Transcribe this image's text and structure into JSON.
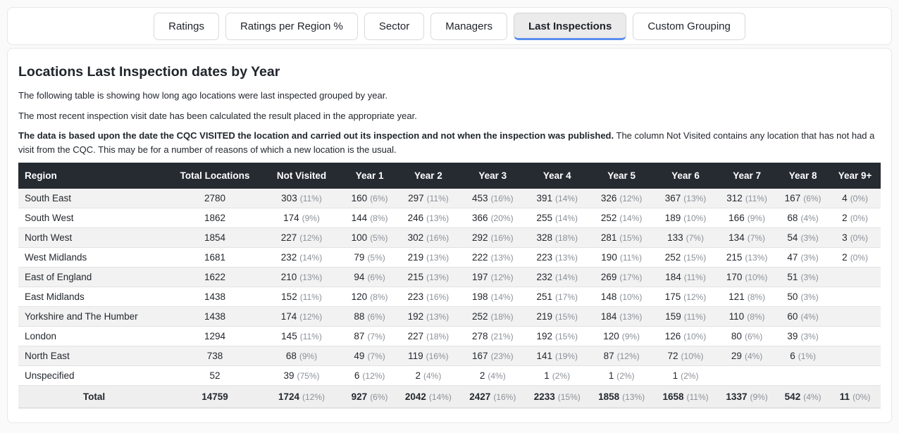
{
  "colors": {
    "accent": "#5b8def",
    "header_bg": "#262b32",
    "stripe": "#f2f2f2",
    "total_bg": "#efefef",
    "pct_gray": "#8b9097"
  },
  "tabs": [
    {
      "label": "Ratings",
      "active": false
    },
    {
      "label": "Ratings per Region %",
      "active": false
    },
    {
      "label": "Sector",
      "active": false
    },
    {
      "label": "Managers",
      "active": false
    },
    {
      "label": "Last Inspections",
      "active": true
    },
    {
      "label": "Custom Grouping",
      "active": false
    }
  ],
  "content": {
    "title": "Locations Last Inspection dates by Year",
    "para1": "The following table is showing how long ago locations were last inspected grouped by year.",
    "para2": "The most recent inspection visit date has been calculated the result placed in the appropriate year.",
    "note_bold": "The data is based upon the date the CQC VISITED the location and carried out its inspection and not when the inspection was published.",
    "note_rest": "The column Not Visited contains any location that has not had a visit from the CQC. This may be for a number of reasons of which a new location is the usual."
  },
  "table": {
    "headers": [
      "Region",
      "Total Locations",
      "Not Visited",
      "Year 1",
      "Year 2",
      "Year 3",
      "Year 4",
      "Year 5",
      "Year 6",
      "Year 7",
      "Year 8",
      "Year 9+"
    ],
    "rows": [
      {
        "region": "South East",
        "total": "2780",
        "cells": [
          {
            "n": "303",
            "p": "(11%)"
          },
          {
            "n": "160",
            "p": "(6%)"
          },
          {
            "n": "297",
            "p": "(11%)"
          },
          {
            "n": "453",
            "p": "(16%)"
          },
          {
            "n": "391",
            "p": "(14%)"
          },
          {
            "n": "326",
            "p": "(12%)"
          },
          {
            "n": "367",
            "p": "(13%)"
          },
          {
            "n": "312",
            "p": "(11%)"
          },
          {
            "n": "167",
            "p": "(6%)"
          },
          {
            "n": "4",
            "p": "(0%)"
          }
        ]
      },
      {
        "region": "South West",
        "total": "1862",
        "cells": [
          {
            "n": "174",
            "p": "(9%)"
          },
          {
            "n": "144",
            "p": "(8%)"
          },
          {
            "n": "246",
            "p": "(13%)"
          },
          {
            "n": "366",
            "p": "(20%)"
          },
          {
            "n": "255",
            "p": "(14%)"
          },
          {
            "n": "252",
            "p": "(14%)"
          },
          {
            "n": "189",
            "p": "(10%)"
          },
          {
            "n": "166",
            "p": "(9%)"
          },
          {
            "n": "68",
            "p": "(4%)"
          },
          {
            "n": "2",
            "p": "(0%)"
          }
        ]
      },
      {
        "region": "North West",
        "total": "1854",
        "cells": [
          {
            "n": "227",
            "p": "(12%)"
          },
          {
            "n": "100",
            "p": "(5%)"
          },
          {
            "n": "302",
            "p": "(16%)"
          },
          {
            "n": "292",
            "p": "(16%)"
          },
          {
            "n": "328",
            "p": "(18%)"
          },
          {
            "n": "281",
            "p": "(15%)"
          },
          {
            "n": "133",
            "p": "(7%)"
          },
          {
            "n": "134",
            "p": "(7%)"
          },
          {
            "n": "54",
            "p": "(3%)"
          },
          {
            "n": "3",
            "p": "(0%)"
          }
        ]
      },
      {
        "region": "West Midlands",
        "total": "1681",
        "cells": [
          {
            "n": "232",
            "p": "(14%)"
          },
          {
            "n": "79",
            "p": "(5%)"
          },
          {
            "n": "219",
            "p": "(13%)"
          },
          {
            "n": "222",
            "p": "(13%)"
          },
          {
            "n": "223",
            "p": "(13%)"
          },
          {
            "n": "190",
            "p": "(11%)"
          },
          {
            "n": "252",
            "p": "(15%)"
          },
          {
            "n": "215",
            "p": "(13%)"
          },
          {
            "n": "47",
            "p": "(3%)"
          },
          {
            "n": "2",
            "p": "(0%)"
          }
        ]
      },
      {
        "region": "East of England",
        "total": "1622",
        "cells": [
          {
            "n": "210",
            "p": "(13%)"
          },
          {
            "n": "94",
            "p": "(6%)"
          },
          {
            "n": "215",
            "p": "(13%)"
          },
          {
            "n": "197",
            "p": "(12%)"
          },
          {
            "n": "232",
            "p": "(14%)"
          },
          {
            "n": "269",
            "p": "(17%)"
          },
          {
            "n": "184",
            "p": "(11%)"
          },
          {
            "n": "170",
            "p": "(10%)"
          },
          {
            "n": "51",
            "p": "(3%)"
          },
          null
        ]
      },
      {
        "region": "East Midlands",
        "total": "1438",
        "cells": [
          {
            "n": "152",
            "p": "(11%)"
          },
          {
            "n": "120",
            "p": "(8%)"
          },
          {
            "n": "223",
            "p": "(16%)"
          },
          {
            "n": "198",
            "p": "(14%)"
          },
          {
            "n": "251",
            "p": "(17%)"
          },
          {
            "n": "148",
            "p": "(10%)"
          },
          {
            "n": "175",
            "p": "(12%)"
          },
          {
            "n": "121",
            "p": "(8%)"
          },
          {
            "n": "50",
            "p": "(3%)"
          },
          null
        ]
      },
      {
        "region": "Yorkshire and The Humber",
        "total": "1438",
        "cells": [
          {
            "n": "174",
            "p": "(12%)"
          },
          {
            "n": "88",
            "p": "(6%)"
          },
          {
            "n": "192",
            "p": "(13%)"
          },
          {
            "n": "252",
            "p": "(18%)"
          },
          {
            "n": "219",
            "p": "(15%)"
          },
          {
            "n": "184",
            "p": "(13%)"
          },
          {
            "n": "159",
            "p": "(11%)"
          },
          {
            "n": "110",
            "p": "(8%)"
          },
          {
            "n": "60",
            "p": "(4%)"
          },
          null
        ]
      },
      {
        "region": "London",
        "total": "1294",
        "cells": [
          {
            "n": "145",
            "p": "(11%)"
          },
          {
            "n": "87",
            "p": "(7%)"
          },
          {
            "n": "227",
            "p": "(18%)"
          },
          {
            "n": "278",
            "p": "(21%)"
          },
          {
            "n": "192",
            "p": "(15%)"
          },
          {
            "n": "120",
            "p": "(9%)"
          },
          {
            "n": "126",
            "p": "(10%)"
          },
          {
            "n": "80",
            "p": "(6%)"
          },
          {
            "n": "39",
            "p": "(3%)"
          },
          null
        ]
      },
      {
        "region": "North East",
        "total": "738",
        "cells": [
          {
            "n": "68",
            "p": "(9%)"
          },
          {
            "n": "49",
            "p": "(7%)"
          },
          {
            "n": "119",
            "p": "(16%)"
          },
          {
            "n": "167",
            "p": "(23%)"
          },
          {
            "n": "141",
            "p": "(19%)"
          },
          {
            "n": "87",
            "p": "(12%)"
          },
          {
            "n": "72",
            "p": "(10%)"
          },
          {
            "n": "29",
            "p": "(4%)"
          },
          {
            "n": "6",
            "p": "(1%)"
          },
          null
        ]
      },
      {
        "region": "Unspecified",
        "total": "52",
        "cells": [
          {
            "n": "39",
            "p": "(75%)"
          },
          {
            "n": "6",
            "p": "(12%)"
          },
          {
            "n": "2",
            "p": "(4%)"
          },
          {
            "n": "2",
            "p": "(4%)"
          },
          {
            "n": "1",
            "p": "(2%)"
          },
          {
            "n": "1",
            "p": "(2%)"
          },
          {
            "n": "1",
            "p": "(2%)"
          },
          null,
          null,
          null
        ]
      }
    ],
    "total_row": {
      "region": "Total",
      "total": "14759",
      "cells": [
        {
          "n": "1724",
          "p": "(12%)"
        },
        {
          "n": "927",
          "p": "(6%)"
        },
        {
          "n": "2042",
          "p": "(14%)"
        },
        {
          "n": "2427",
          "p": "(16%)"
        },
        {
          "n": "2233",
          "p": "(15%)"
        },
        {
          "n": "1858",
          "p": "(13%)"
        },
        {
          "n": "1658",
          "p": "(11%)"
        },
        {
          "n": "1337",
          "p": "(9%)"
        },
        {
          "n": "542",
          "p": "(4%)"
        },
        {
          "n": "11",
          "p": "(0%)"
        }
      ]
    }
  }
}
